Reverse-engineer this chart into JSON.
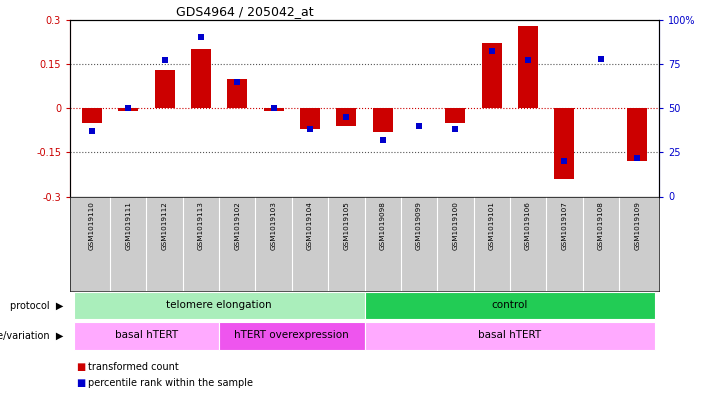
{
  "title": "GDS4964 / 205042_at",
  "samples": [
    "GSM1019110",
    "GSM1019111",
    "GSM1019112",
    "GSM1019113",
    "GSM1019102",
    "GSM1019103",
    "GSM1019104",
    "GSM1019105",
    "GSM1019098",
    "GSM1019099",
    "GSM1019100",
    "GSM1019101",
    "GSM1019106",
    "GSM1019107",
    "GSM1019108",
    "GSM1019109"
  ],
  "red_values": [
    -0.05,
    -0.01,
    0.13,
    0.2,
    0.1,
    -0.01,
    -0.07,
    -0.06,
    -0.08,
    0.0,
    -0.05,
    0.22,
    0.28,
    -0.24,
    0.0,
    -0.18
  ],
  "blue_values": [
    37,
    50,
    77,
    90,
    65,
    50,
    38,
    45,
    32,
    40,
    38,
    82,
    77,
    20,
    78,
    22
  ],
  "ylim_left": [
    -0.3,
    0.3
  ],
  "ylim_right": [
    0,
    100
  ],
  "yticks_left": [
    -0.3,
    -0.15,
    0.0,
    0.15,
    0.3
  ],
  "yticks_right": [
    0,
    25,
    50,
    75,
    100
  ],
  "protocol_groups": [
    {
      "label": "telomere elongation",
      "start": 0,
      "end": 7,
      "color": "#aaeebb"
    },
    {
      "label": "control",
      "start": 8,
      "end": 15,
      "color": "#22cc55"
    }
  ],
  "genotype_groups": [
    {
      "label": "basal hTERT",
      "start": 0,
      "end": 3,
      "color": "#ffaaff"
    },
    {
      "label": "hTERT overexpression",
      "start": 4,
      "end": 7,
      "color": "#ee55ee"
    },
    {
      "label": "basal hTERT",
      "start": 8,
      "end": 15,
      "color": "#ffaaff"
    }
  ],
  "red_color": "#cc0000",
  "blue_color": "#0000cc",
  "dotted_line_color": "#555555",
  "zero_line_color": "#cc0000",
  "bg_color": "#ffffff",
  "bar_width": 0.55,
  "label_bg": "#cccccc",
  "legend_red": "transformed count",
  "legend_blue": "percentile rank within the sample"
}
